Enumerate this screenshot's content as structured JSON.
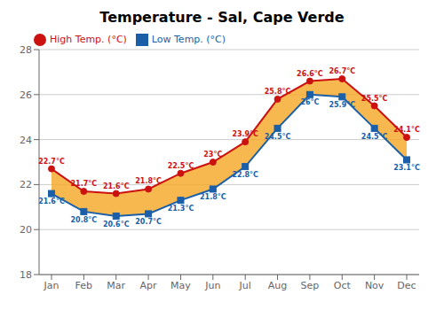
{
  "chart_data": {
    "type": "line",
    "title": "Temperature - Sal, Cape Verde",
    "categories": [
      "Jan",
      "Feb",
      "Mar",
      "Apr",
      "May",
      "Jun",
      "Jul",
      "Aug",
      "Sep",
      "Oct",
      "Nov",
      "Dec"
    ],
    "series": [
      {
        "name": "Low Temp. (°C)",
        "color": "#1a5fa8",
        "marker": "square",
        "values": [
          21.6,
          20.8,
          20.6,
          20.7,
          21.3,
          21.8,
          22.8,
          24.5,
          26.0,
          25.9,
          24.5,
          23.1
        ],
        "value_labels": [
          "21.6°C",
          "20.8°C",
          "20.6°C",
          "20.7°C",
          "21.3°C",
          "21.8°C",
          "22.8°C",
          "24.5°C",
          "26°C",
          "25.9°C",
          "24.5°C",
          "23.1°C"
        ]
      },
      {
        "name": "High Temp. (°C)",
        "color": "#cc1111",
        "marker": "circle",
        "values": [
          22.7,
          21.7,
          21.6,
          21.8,
          22.5,
          23.0,
          23.9,
          25.8,
          26.6,
          26.7,
          25.5,
          24.1
        ],
        "value_labels": [
          "22.7°C",
          "21.7°C",
          "21.6°C",
          "21.8°C",
          "22.5°C",
          "23°C",
          "23.9°C",
          "25.8°C",
          "26.6°C",
          "26.7°C",
          "25.5°C",
          "24.1°C"
        ]
      }
    ],
    "color": "#f5a623",
    "ylim": [
      18,
      28
    ],
    "yticks": [
      18,
      20,
      22,
      24,
      26,
      28
    ],
    "grid": true,
    "data_labels": true,
    "legend": "top"
  }
}
